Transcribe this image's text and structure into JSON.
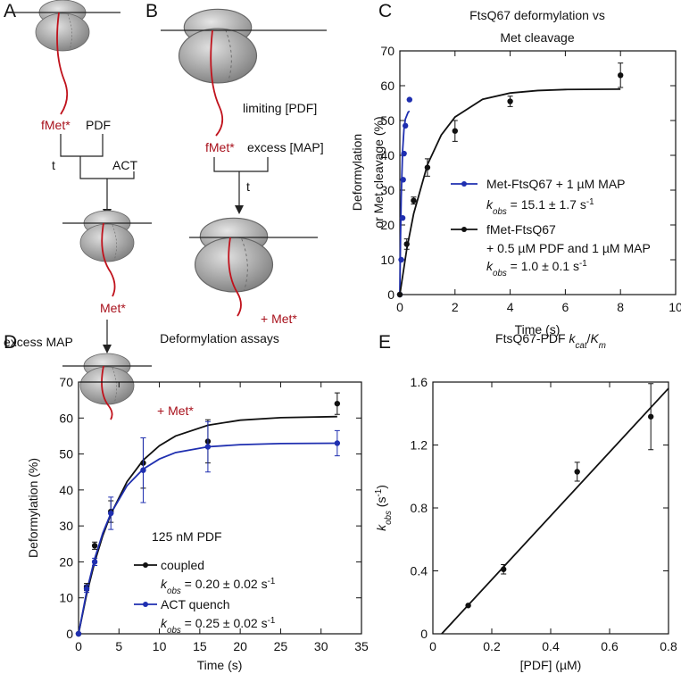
{
  "panel_labels": [
    "A",
    "B",
    "C",
    "D",
    "E"
  ],
  "diagram_a": {
    "fmet": "fMet*",
    "pdf": "PDF",
    "t": "t",
    "act": "ACT",
    "met": "Met*",
    "excess_map": "excess MAP",
    "product": "+ Met*"
  },
  "diagram_b": {
    "limiting": "limiting [PDF]",
    "fmet": "fMet*",
    "excess": "excess [MAP]",
    "t": "t",
    "product": "+ Met*"
  },
  "chart_data": [
    {
      "type": "scatter",
      "title": [
        "FtsQ67 deformylation vs",
        "Met cleavage"
      ],
      "xlabel": "Time (s)",
      "ylabel": [
        "Deformylation",
        "or Met cleavage (%)"
      ],
      "xlim": [
        0,
        10
      ],
      "ylim": [
        0,
        70
      ],
      "xticks": [
        0,
        2,
        4,
        6,
        8,
        10
      ],
      "yticks": [
        0,
        10,
        20,
        30,
        40,
        50,
        60,
        70
      ],
      "series": [
        {
          "name": "Met-FtsQ67 + 1 µM MAP",
          "color": "#1f2fb0",
          "x": [
            0,
            0.05,
            0.1,
            0.12,
            0.15,
            0.2,
            0.35
          ],
          "values": [
            0,
            10,
            22,
            33,
            40.5,
            48.5,
            56
          ],
          "errors": [
            null,
            null,
            null,
            null,
            null,
            null,
            null
          ],
          "notes": [
            [
              {
                "text": "k",
                "style": "italic"
              },
              {
                "text": "obs",
                "style": "italic sub"
              },
              {
                "text": " =  15.1 ± 1.7 s"
              },
              {
                "text": "-1",
                "style": "sup"
              }
            ]
          ]
        },
        {
          "name": "fMet-FtsQ67",
          "color": "#111111",
          "x": [
            0,
            0.25,
            0.5,
            1,
            2,
            4,
            8
          ],
          "values": [
            0,
            14.5,
            27,
            36.5,
            47,
            55.5,
            63
          ],
          "errors": [
            null,
            1.5,
            1,
            2.5,
            3,
            1.5,
            3.5
          ],
          "notes": [
            "+ 0.5 µM PDF and 1 µM MAP",
            [
              {
                "text": "k",
                "style": "italic"
              },
              {
                "text": "obs",
                "style": "italic sub"
              },
              {
                "text": " =  1.0 ± 0.1 s"
              },
              {
                "text": "-1",
                "style": "sup"
              }
            ]
          ]
        }
      ],
      "fits": [
        {
          "color": "#1f2fb0",
          "x": [
            0,
            0.025,
            0.05,
            0.1,
            0.15,
            0.2,
            0.3,
            0.35
          ],
          "values": [
            0,
            16.7,
            28.1,
            41.3,
            47.5,
            50.4,
            52.4,
            52.7
          ]
        },
        {
          "color": "#111111",
          "x": [
            0,
            0.25,
            0.5,
            1,
            1.5,
            2,
            3,
            4,
            5,
            6,
            8
          ],
          "values": [
            0,
            13.05,
            23.2,
            37.3,
            45.8,
            51.0,
            56.1,
            57.9,
            58.6,
            58.9,
            59.0
          ]
        }
      ]
    },
    {
      "type": "scatter",
      "title": [
        "Deformylation assays"
      ],
      "xlabel": "Time (s)",
      "ylabel": [
        "Deformylation (%)"
      ],
      "xlim": [
        0,
        35
      ],
      "ylim": [
        0,
        70
      ],
      "xticks": [
        0,
        5,
        10,
        15,
        20,
        25,
        30,
        35
      ],
      "yticks": [
        0,
        10,
        20,
        30,
        40,
        50,
        60,
        70
      ],
      "annotations": [
        "125 nM PDF"
      ],
      "series": [
        {
          "name": "coupled",
          "color": "#111111",
          "x": [
            0,
            1,
            2,
            4,
            8,
            16,
            32
          ],
          "values": [
            0,
            13,
            24.5,
            34,
            47.5,
            53.5,
            64
          ],
          "errors": [
            null,
            1,
            1,
            3,
            7,
            6,
            3
          ],
          "notes": [
            [
              {
                "text": "k",
                "style": "italic"
              },
              {
                "text": "obs",
                "style": "italic sub"
              },
              {
                "text": " = 0.20 ± 0.02 s"
              },
              {
                "text": "-1",
                "style": "sup"
              }
            ]
          ]
        },
        {
          "name": "ACT quench",
          "color": "#1f2fb0",
          "x": [
            0,
            1,
            2,
            4,
            8,
            16,
            32
          ],
          "values": [
            0,
            12.5,
            20,
            33.5,
            45.5,
            52,
            53
          ],
          "errors": [
            null,
            1,
            1,
            4.5,
            9,
            7,
            3.5
          ],
          "notes": [
            [
              {
                "text": "k",
                "style": "italic"
              },
              {
                "text": "obs",
                "style": "italic sub"
              },
              {
                "text": " = 0.25 ± 0.02 s"
              },
              {
                "text": "-1",
                "style": "sup"
              }
            ]
          ]
        }
      ],
      "fits": [
        {
          "color": "#111111",
          "x": [
            0,
            1,
            2,
            3,
            4,
            6,
            8,
            10,
            12,
            16,
            20,
            25,
            32
          ],
          "values": [
            0,
            10.97,
            19.95,
            27.3,
            33.3,
            42.3,
            48.3,
            52.3,
            55.0,
            58.0,
            59.4,
            60.1,
            60.4
          ]
        },
        {
          "color": "#1f2fb0",
          "x": [
            0,
            1,
            2,
            3,
            4,
            6,
            8,
            10,
            12,
            16,
            20,
            25,
            32
          ],
          "values": [
            0,
            11.7,
            20.9,
            28.0,
            33.5,
            41.2,
            45.8,
            48.6,
            50.4,
            52.0,
            52.6,
            52.9,
            53.0
          ]
        }
      ]
    },
    {
      "type": "scatter",
      "title": [
        [
          {
            "text": "FtsQ67-PDF "
          },
          {
            "text": "k",
            "style": "italic"
          },
          {
            "text": "cat",
            "style": "italic sub"
          },
          {
            "text": "/"
          },
          {
            "text": "K",
            "style": "italic"
          },
          {
            "text": "m",
            "style": "italic sub"
          }
        ]
      ],
      "xlabel": "[PDF] (µM)",
      "ylabel": [
        [
          {
            "text": "k",
            "style": "italic"
          },
          {
            "text": "obs",
            "style": "italic sub"
          },
          {
            "text": " (s"
          },
          {
            "text": "-1",
            "style": "sup"
          },
          {
            "text": ")"
          }
        ]
      ],
      "xlim": [
        0,
        0.8
      ],
      "ylim": [
        0,
        1.6
      ],
      "xticks": [
        0,
        0.2,
        0.4,
        0.6,
        0.8
      ],
      "yticks": [
        0,
        0.4,
        0.8,
        1.2,
        1.6
      ],
      "series": [
        {
          "color": "#111111",
          "x": [
            0.12,
            0.24,
            0.49,
            0.74
          ],
          "values": [
            0.18,
            0.41,
            1.03,
            1.38
          ],
          "errors": [
            null,
            0.03,
            0.06,
            0.21
          ]
        }
      ],
      "fits": [
        {
          "color": "#111111",
          "x": [
            0.03,
            0.8
          ],
          "values": [
            0,
            1.56
          ]
        }
      ]
    }
  ]
}
